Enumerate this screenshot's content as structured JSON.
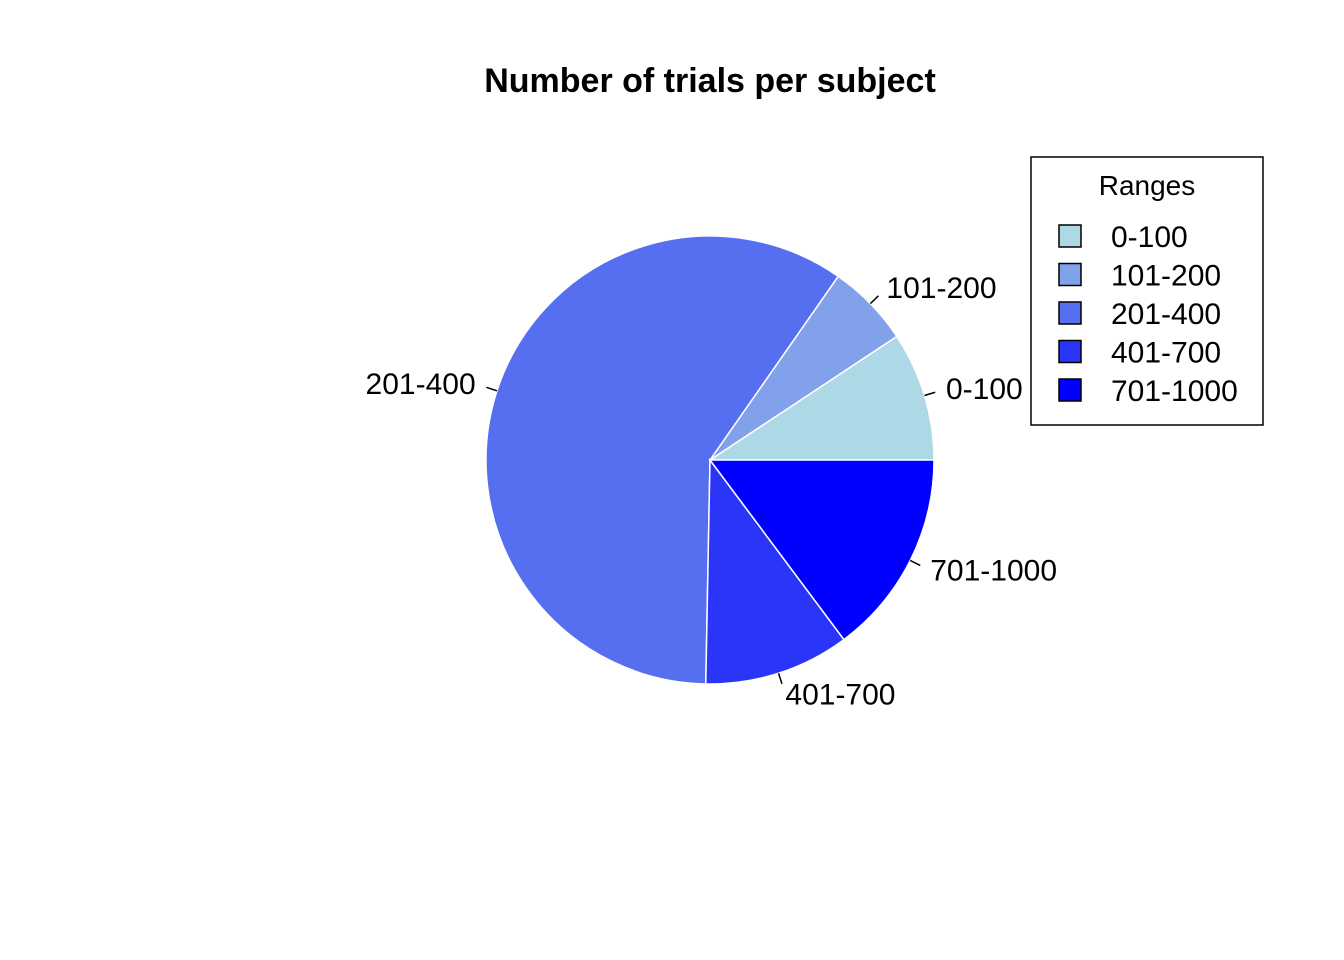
{
  "chart_data": {
    "type": "pie",
    "title": "Number of trials per subject",
    "categories": [
      "0-100",
      "101-200",
      "201-400",
      "401-700",
      "701-1000"
    ],
    "values": [
      9.3,
      6.0,
      59.4,
      10.5,
      14.8
    ],
    "colors": [
      "#add8e6",
      "#82a1eb",
      "#566ff1",
      "#2b35f8",
      "#0000ff"
    ],
    "slice_border_color": "#ffffff",
    "start_angle_deg": 0,
    "direction": "counterclockwise",
    "legend": {
      "title": "Ranges",
      "placement": "top-right",
      "entries": [
        "0-100",
        "101-200",
        "201-400",
        "401-700",
        "701-1000"
      ]
    }
  }
}
